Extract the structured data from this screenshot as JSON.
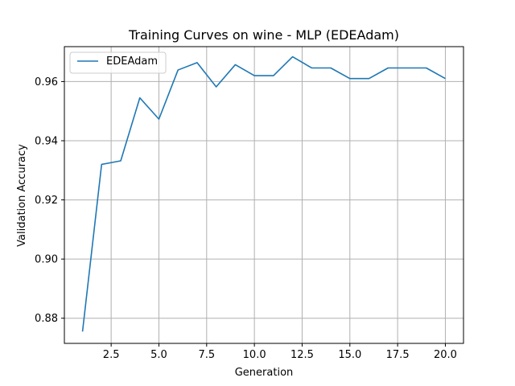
{
  "chart_data": {
    "type": "line",
    "title": "Training Curves on wine - MLP (EDEAdam)",
    "xlabel": "Generation",
    "ylabel": "Validation Accuracy",
    "xlim": [
      0.05,
      20.95
    ],
    "ylim": [
      0.8715,
      0.9718
    ],
    "xticks": [
      2.5,
      5.0,
      7.5,
      10.0,
      12.5,
      15.0,
      17.5,
      20.0
    ],
    "xtick_labels": [
      "2.5",
      "5.0",
      "7.5",
      "10.0",
      "12.5",
      "15.0",
      "17.5",
      "20.0"
    ],
    "yticks": [
      0.88,
      0.9,
      0.92,
      0.94,
      0.96
    ],
    "ytick_labels": [
      "0.88",
      "0.90",
      "0.92",
      "0.94",
      "0.96"
    ],
    "grid": true,
    "legend_position": "upper-left",
    "series": [
      {
        "name": "EDEAdam",
        "color": "#1f77b4",
        "x": [
          1,
          2,
          3,
          4,
          5,
          6,
          7,
          8,
          9,
          10,
          11,
          12,
          13,
          14,
          15,
          16,
          17,
          18,
          19,
          20
        ],
        "y": [
          0.8755,
          0.932,
          0.9332,
          0.9545,
          0.9473,
          0.9639,
          0.9664,
          0.9582,
          0.9657,
          0.962,
          0.962,
          0.9684,
          0.9646,
          0.9646,
          0.961,
          0.961,
          0.9646,
          0.9646,
          0.9646,
          0.961
        ]
      }
    ]
  }
}
